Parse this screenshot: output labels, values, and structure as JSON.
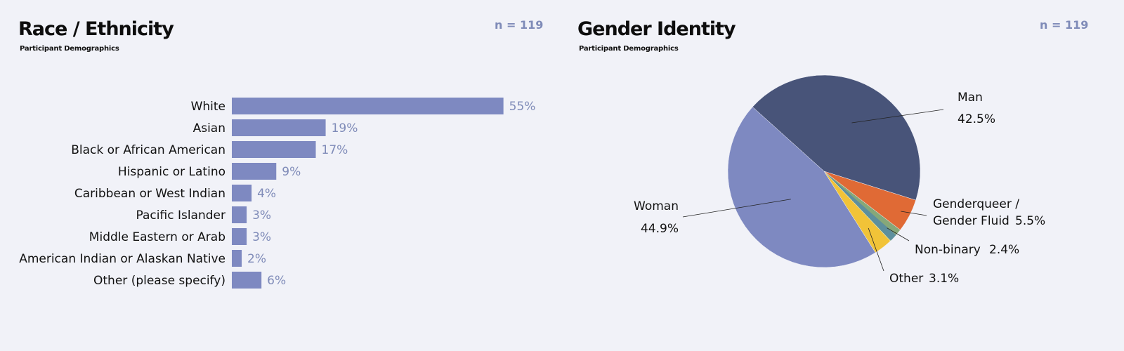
{
  "race_panel": {
    "title": "Race / Ethnicity",
    "subtitle": "Participant Demographics",
    "count_label": "n = 119"
  },
  "gender_panel": {
    "title": "Gender Identity",
    "subtitle": "Participant Demographics",
    "count_label": "n = 119"
  },
  "colors": {
    "background": "#f1f2f8",
    "bar": "#7e89c1",
    "value_label": "#7f8bb8",
    "man": "#485479",
    "woman": "#7e89c1",
    "genderqueer": "#e06a35",
    "non_binary_green": "#86a879",
    "non_binary_teal": "#5d8f9d",
    "other": "#f1c338"
  },
  "chart_data": [
    {
      "type": "bar",
      "orientation": "horizontal",
      "title": "Race / Ethnicity",
      "subtitle": "Participant Demographics",
      "categories": [
        "White",
        "Asian",
        "Black or African American",
        "Hispanic or Latino",
        "Caribbean or West Indian",
        "Pacific Islander",
        "Middle Eastern or Arab",
        "American Indian or Alaskan Native",
        "Other (please specify)"
      ],
      "values": [
        55,
        19,
        17,
        9,
        4,
        3,
        3,
        2,
        6
      ],
      "value_labels": [
        "55%",
        "19%",
        "17%",
        "9%",
        "4%",
        "3%",
        "3%",
        "2%",
        "6%"
      ],
      "grid": false,
      "legend": "none"
    },
    {
      "type": "pie",
      "title": "Gender Identity",
      "subtitle": "Participant Demographics",
      "slices": [
        {
          "label": "Man",
          "value": 42.5,
          "value_label": "42.5%"
        },
        {
          "label": "Genderqueer / Gender Fluid",
          "label_lines": [
            "Genderqueer /",
            "Gender Fluid"
          ],
          "value": 5.5,
          "value_label": "5.5%"
        },
        {
          "label": "Non-binary",
          "value": 2.4,
          "value_label": "2.4%"
        },
        {
          "label": "Other",
          "value": 3.1,
          "value_label": "3.1%"
        },
        {
          "label": "Woman",
          "value": 44.9,
          "value_label": "44.9%"
        }
      ],
      "legend": "none"
    }
  ]
}
